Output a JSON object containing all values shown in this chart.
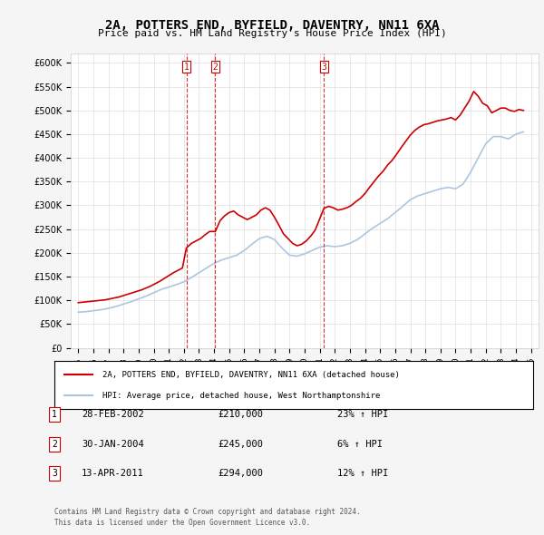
{
  "title": "2A, POTTERS END, BYFIELD, DAVENTRY, NN11 6XA",
  "subtitle": "Price paid vs. HM Land Registry's House Price Index (HPI)",
  "legend_line1": "2A, POTTERS END, BYFIELD, DAVENTRY, NN11 6XA (detached house)",
  "legend_line2": "HPI: Average price, detached house, West Northamptonshire",
  "footer1": "Contains HM Land Registry data © Crown copyright and database right 2024.",
  "footer2": "This data is licensed under the Open Government Licence v3.0.",
  "transactions": [
    {
      "num": 1,
      "date": "28-FEB-2002",
      "price": "£210,000",
      "hpi": "23% ↑ HPI",
      "x_year": 2002.16
    },
    {
      "num": 2,
      "date": "30-JAN-2004",
      "price": "£245,000",
      "hpi": "6% ↑ HPI",
      "x_year": 2004.08
    },
    {
      "num": 3,
      "date": "13-APR-2011",
      "price": "£294,000",
      "hpi": "12% ↑ HPI",
      "x_year": 2011.28
    }
  ],
  "hpi_color": "#adc6e0",
  "price_color": "#cc0000",
  "vline_color": "#cc0000",
  "background_color": "#f5f5f5",
  "plot_bg_color": "#ffffff",
  "ylim": [
    0,
    620000
  ],
  "xlim_start": 1994.5,
  "xlim_end": 2025.5,
  "yticks": [
    0,
    50000,
    100000,
    150000,
    200000,
    250000,
    300000,
    350000,
    400000,
    450000,
    500000,
    550000,
    600000
  ],
  "xticks": [
    1995,
    1996,
    1997,
    1998,
    1999,
    2000,
    2001,
    2002,
    2003,
    2004,
    2005,
    2006,
    2007,
    2008,
    2009,
    2010,
    2011,
    2012,
    2013,
    2014,
    2015,
    2016,
    2017,
    2018,
    2019,
    2020,
    2021,
    2022,
    2023,
    2024,
    2025
  ],
  "hpi_data_x": [
    1995.0,
    1995.5,
    1996.0,
    1996.5,
    1997.0,
    1997.5,
    1998.0,
    1998.5,
    1999.0,
    1999.5,
    2000.0,
    2000.5,
    2001.0,
    2001.5,
    2002.0,
    2002.5,
    2003.0,
    2003.5,
    2004.0,
    2004.5,
    2005.0,
    2005.5,
    2006.0,
    2006.5,
    2007.0,
    2007.5,
    2008.0,
    2008.5,
    2009.0,
    2009.5,
    2010.0,
    2010.5,
    2011.0,
    2011.5,
    2012.0,
    2012.5,
    2013.0,
    2013.5,
    2014.0,
    2014.5,
    2015.0,
    2015.5,
    2016.0,
    2016.5,
    2017.0,
    2017.5,
    2018.0,
    2018.5,
    2019.0,
    2019.5,
    2020.0,
    2020.5,
    2021.0,
    2021.5,
    2022.0,
    2022.5,
    2023.0,
    2023.5,
    2024.0,
    2024.5
  ],
  "hpi_data_y": [
    75000,
    76000,
    78000,
    80000,
    83000,
    87000,
    92000,
    97000,
    103000,
    109000,
    116000,
    123000,
    128000,
    133000,
    139000,
    148000,
    158000,
    168000,
    178000,
    185000,
    190000,
    195000,
    205000,
    218000,
    230000,
    235000,
    228000,
    210000,
    195000,
    193000,
    198000,
    205000,
    212000,
    215000,
    213000,
    215000,
    220000,
    228000,
    240000,
    252000,
    262000,
    272000,
    285000,
    298000,
    312000,
    320000,
    325000,
    330000,
    335000,
    338000,
    335000,
    345000,
    370000,
    400000,
    430000,
    445000,
    445000,
    440000,
    450000,
    455000
  ],
  "price_data_x": [
    1995.0,
    1995.3,
    1995.6,
    1995.9,
    1996.2,
    1996.5,
    1996.8,
    1997.1,
    1997.4,
    1997.7,
    1998.0,
    1998.3,
    1998.6,
    1998.9,
    1999.2,
    1999.5,
    1999.8,
    2000.1,
    2000.4,
    2000.7,
    2001.0,
    2001.3,
    2001.6,
    2001.9,
    2002.16,
    2002.5,
    2002.8,
    2003.1,
    2003.4,
    2003.7,
    2004.08,
    2004.4,
    2004.7,
    2005.0,
    2005.3,
    2005.6,
    2005.9,
    2006.2,
    2006.5,
    2006.8,
    2007.1,
    2007.4,
    2007.7,
    2008.0,
    2008.3,
    2008.6,
    2008.9,
    2009.2,
    2009.5,
    2009.8,
    2010.1,
    2010.4,
    2010.7,
    2011.28,
    2011.6,
    2011.9,
    2012.2,
    2012.5,
    2012.8,
    2013.1,
    2013.4,
    2013.7,
    2014.0,
    2014.3,
    2014.6,
    2014.9,
    2015.2,
    2015.5,
    2015.8,
    2016.1,
    2016.4,
    2016.7,
    2017.0,
    2017.3,
    2017.6,
    2017.9,
    2018.2,
    2018.5,
    2018.8,
    2019.1,
    2019.4,
    2019.7,
    2020.0,
    2020.3,
    2020.6,
    2020.9,
    2021.2,
    2021.5,
    2021.8,
    2022.1,
    2022.4,
    2022.7,
    2023.0,
    2023.3,
    2023.6,
    2023.9,
    2024.2,
    2024.5
  ],
  "price_data_y": [
    95000,
    96000,
    97000,
    98000,
    99000,
    100000,
    101000,
    103000,
    105000,
    107000,
    110000,
    113000,
    116000,
    119000,
    122000,
    126000,
    130000,
    135000,
    140000,
    146000,
    152000,
    158000,
    163000,
    168000,
    210000,
    220000,
    225000,
    230000,
    238000,
    245000,
    245000,
    268000,
    278000,
    285000,
    288000,
    280000,
    275000,
    270000,
    275000,
    280000,
    290000,
    295000,
    290000,
    275000,
    258000,
    240000,
    230000,
    220000,
    215000,
    218000,
    225000,
    235000,
    248000,
    294000,
    298000,
    295000,
    290000,
    292000,
    295000,
    300000,
    308000,
    315000,
    325000,
    338000,
    350000,
    362000,
    372000,
    385000,
    395000,
    408000,
    422000,
    435000,
    448000,
    458000,
    465000,
    470000,
    472000,
    475000,
    478000,
    480000,
    482000,
    485000,
    480000,
    490000,
    505000,
    520000,
    540000,
    530000,
    515000,
    510000,
    495000,
    500000,
    505000,
    505000,
    500000,
    498000,
    502000,
    500000
  ]
}
